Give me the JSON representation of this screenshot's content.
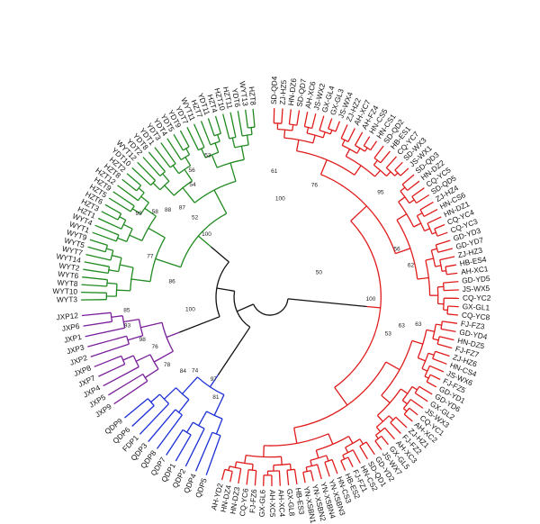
{
  "clades": [
    {
      "name": "green",
      "color": "#1f8a1f",
      "label_pos": "upper-left",
      "labels": [
        "WYT3",
        "WYT10",
        "WYT8",
        "WYT6",
        "WYT2",
        "WYT14",
        "WYT7",
        "WYT5",
        "WYT9",
        "WYT1",
        "WYT4",
        "HZT1",
        "HZT3",
        "HZT6",
        "HZT5",
        "HZT9",
        "HZT12",
        "HZT8",
        "HZT2",
        "YDT10",
        "WYT12",
        "YDT2",
        "YDT8",
        "YDT1",
        "YDT3",
        "YDT4",
        "YDT5",
        "YDT9",
        "YDT7",
        "WYT11",
        "HZT7",
        "YDT11",
        "HZT4",
        "HZT10",
        "HZT11",
        "YDT6",
        "WYT13",
        "HZT8"
      ]
    },
    {
      "name": "purple",
      "color": "#7a1f9a",
      "label_pos": "left",
      "labels": [
        "JXP9",
        "JXP5",
        "JXP4",
        "JXP7",
        "JXP8",
        "JXP2",
        "JXP3",
        "JXP1",
        "JXP6",
        "JXP12"
      ]
    },
    {
      "name": "blue",
      "color": "#1a2fd6",
      "label_pos": "lower-left",
      "labels": [
        "QDP5",
        "QDP4",
        "QDP2",
        "QDP1",
        "QDP7",
        "QDP8",
        "QDP3",
        "FDP1",
        "QDP6",
        "QDP9"
      ]
    },
    {
      "name": "red",
      "color": "#e01b1b",
      "label_pos": "right",
      "labels": [
        "SD-QD4",
        "ZJ-HZ5",
        "HN-DZ6",
        "SD-QD7",
        "AH-XC6",
        "JS-WX2",
        "GX-GL4",
        "GX-GL3",
        "JS-WX4",
        "ZJ-HZ2",
        "AH-XC7",
        "AH-FZ4",
        "HN-CS5",
        "HN-CS1",
        "SD-QD2",
        "HB-ES1",
        "CQ-YC7",
        "SD-WX3",
        "JS-WX1",
        "SD-QD3",
        "HN-DZ2",
        "CQ-YC5",
        "SD-QD5",
        "ZJ-HZ4",
        "HN-CS6",
        "HN-DZ1",
        "CQ-YC4",
        "CQ-YC3",
        "GD-YD3",
        "GD-YD7",
        "ZJ-HZ3",
        "HB-ES4",
        "AH-XC1",
        "GD-YD5",
        "JS-WX5",
        "CQ-YC2",
        "GX-GL1",
        "CQ-YC8",
        "FJ-FZ3",
        "GD-YD4",
        "HN-DZ5",
        "FJ-FZ7",
        "ZJ-HZ6",
        "HN-CS4",
        "JS-WX6",
        "FJ-FZ5",
        "GD-YD1",
        "GD-YD6",
        "GX-GL2",
        "JS-WX3",
        "CQ-YC1",
        "AH-XC2",
        "ZJ-HZ1",
        "FJ-FZ2",
        "AH-XC3",
        "GX-GL5",
        "JS-WX7",
        "GD-YD2",
        "SD-QD1",
        "HN-CS2",
        "FJ-FZ1",
        "HB-ES2",
        "HN-CS3",
        "YN-XSBN3",
        "YN-XSBN4",
        "YN-XSBN2",
        "YN-XSBN1",
        "HB-ES3",
        "GX-GL8",
        "AH-XC4",
        "AH-XC5",
        "GX-GL6",
        "FJ-FZ6",
        "CQ-YC6",
        "HN-DZ3",
        "HN-DZ4",
        "AH-YD2"
      ]
    }
  ],
  "bootstrap": [
    {
      "v": "81",
      "a": -62,
      "r": 128
    },
    {
      "v": "97",
      "a": -56,
      "r": 112
    },
    {
      "v": "74",
      "a": -45,
      "r": 118
    },
    {
      "v": "84",
      "a": -41,
      "r": 128
    },
    {
      "v": "78",
      "a": -34,
      "r": 138
    },
    {
      "v": "76",
      "a": -24,
      "r": 140
    },
    {
      "v": "98",
      "a": -19,
      "r": 150
    },
    {
      "v": "100",
      "a": -10,
      "r": 90
    },
    {
      "v": "93",
      "a": -12,
      "r": 162
    },
    {
      "v": "85",
      "a": -6,
      "r": 160
    },
    {
      "v": "86",
      "a": 8,
      "r": 110
    },
    {
      "v": "77",
      "a": 18,
      "r": 140
    },
    {
      "v": "99",
      "a": 32,
      "r": 172
    },
    {
      "v": "58",
      "a": 36,
      "r": 158
    },
    {
      "v": "88",
      "a": 40,
      "r": 148
    },
    {
      "v": "87",
      "a": 45,
      "r": 138
    },
    {
      "v": "52",
      "a": 46,
      "r": 120
    },
    {
      "v": "100",
      "a": 44,
      "r": 98
    },
    {
      "v": "54",
      "a": 55,
      "r": 150
    },
    {
      "v": "56",
      "a": 58,
      "r": 164
    },
    {
      "v": "53",
      "a": 66,
      "r": 170
    },
    {
      "v": "100",
      "a": 96,
      "r": 108
    },
    {
      "v": "61",
      "a": 92,
      "r": 138
    },
    {
      "v": "50",
      "a": 155,
      "r": 60
    },
    {
      "v": "100",
      "a": 182,
      "r": 112
    },
    {
      "v": "53",
      "a": 198,
      "r": 138
    },
    {
      "v": "63",
      "a": 193,
      "r": 150
    },
    {
      "v": "63",
      "a": 191,
      "r": 168
    },
    {
      "v": "62",
      "a": 168,
      "r": 160
    },
    {
      "v": "56",
      "a": 160,
      "r": 150
    },
    {
      "v": "95",
      "a": 137,
      "r": 168
    },
    {
      "v": "76",
      "a": 112,
      "r": 132
    }
  ]
}
